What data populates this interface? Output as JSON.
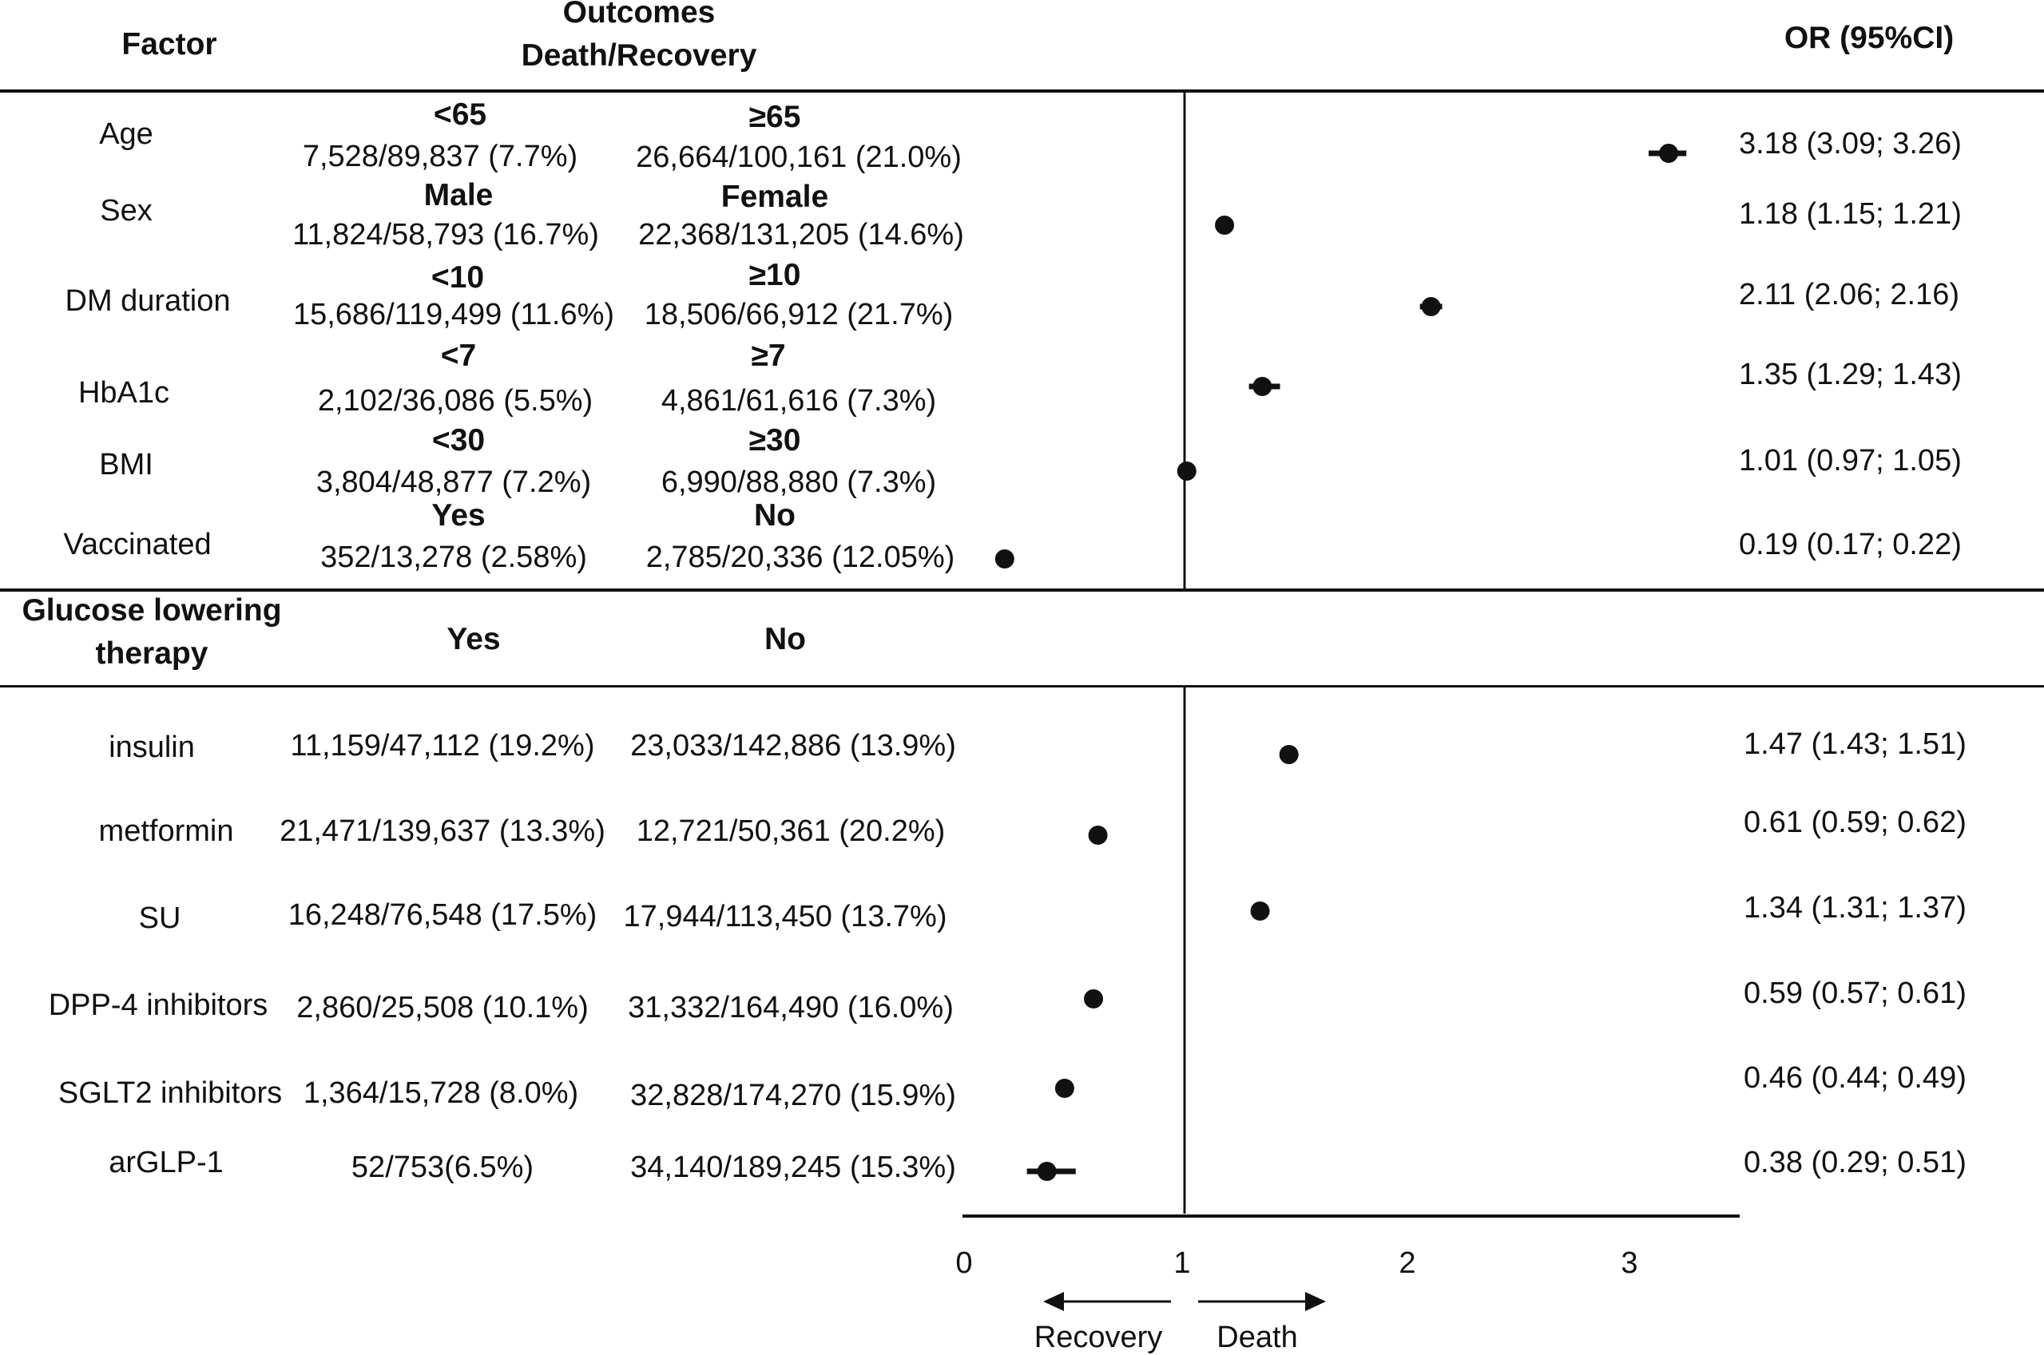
{
  "header": {
    "factor": "Factor",
    "outcomes_line1": "Outcomes",
    "outcomes_line2": "Death/Recovery",
    "or": "OR  (95%CI)"
  },
  "section2": {
    "title_line1": "Glucose lowering",
    "title_line2": "therapy",
    "col_yes": "Yes",
    "col_no": "No"
  },
  "rows": [
    {
      "factor": "Age",
      "g1": "<65",
      "v1": "7,528/89,837 (7.7%)",
      "g2": "≥65",
      "v2": "26,664/100,161 (21.0%)",
      "or_text": "3.18 (3.09; 3.26)"
    },
    {
      "factor": "Sex",
      "g1": "Male",
      "v1": "11,824/58,793 (16.7%)",
      "g2": "Female",
      "v2": "22,368/131,205 (14.6%)",
      "or_text": "1.18 (1.15; 1.21)"
    },
    {
      "factor": "DM duration",
      "g1": "<10",
      "v1": "15,686/119,499 (11.6%)",
      "g2": "≥10",
      "v2": "18,506/66,912 (21.7%)",
      "or_text": "2.11 (2.06; 2.16)"
    },
    {
      "factor": "HbA1c",
      "g1": "<7",
      "v1": "2,102/36,086 (5.5%)",
      "g2": "≥7",
      "v2": "4,861/61,616 (7.3%)",
      "or_text": "1.35 (1.29; 1.43)"
    },
    {
      "factor": "BMI",
      "g1": "<30",
      "v1": "3,804/48,877 (7.2%)",
      "g2": "≥30",
      "v2": "6,990/88,880 (7.3%)",
      "or_text": "1.01 (0.97; 1.05)"
    },
    {
      "factor": "Vaccinated",
      "g1": "Yes",
      "v1": "352/13,278 (2.58%)",
      "g2": "No",
      "v2": "2,785/20,336 (12.05%)",
      "or_text": "0.19 (0.17; 0.22)"
    }
  ],
  "therapy_rows": [
    {
      "factor": "insulin",
      "v1": "11,159/47,112 (19.2%)",
      "v2": "23,033/142,886 (13.9%)",
      "or_text": "1.47 (1.43; 1.51)"
    },
    {
      "factor": "metformin",
      "v1": "21,471/139,637 (13.3%)",
      "v2": "12,721/50,361 (20.2%)",
      "or_text": "0.61 (0.59; 0.62)"
    },
    {
      "factor": "SU",
      "v1": "16,248/76,548 (17.5%)",
      "v2": "17,944/113,450 (13.7%)",
      "or_text": "1.34 (1.31; 1.37)"
    },
    {
      "factor": "DPP-4 inhibitors",
      "v1": "2,860/25,508 (10.1%)",
      "v2": "31,332/164,490 (16.0%)",
      "or_text": "0.59 (0.57; 0.61)"
    },
    {
      "factor": "SGLT2 inhibitors",
      "v1": "1,364/15,728 (8.0%)",
      "v2": "32,828/174,270 (15.9%)",
      "or_text": "0.46 (0.44; 0.49)"
    },
    {
      "factor": "arGLP-1",
      "v1": "52/753(6.5%)",
      "v2": "34,140/189,245 (15.3%)",
      "or_text": "0.38 (0.29; 0.51)"
    }
  ],
  "axis": {
    "ticks": [
      "0",
      "1",
      "2",
      "3"
    ],
    "left_label": "Recovery",
    "right_label": "Death"
  },
  "chart_data": {
    "type": "forest",
    "title": "",
    "xlabel": "OR (95%CI)",
    "xlim": [
      0,
      3.5
    ],
    "reference_line": 1,
    "categories": [
      "Age",
      "Sex",
      "DM duration",
      "HbA1c",
      "BMI",
      "Vaccinated",
      "insulin",
      "metformin",
      "SU",
      "DPP-4 inhibitors",
      "SGLT2 inhibitors",
      "arGLP-1"
    ],
    "series": [
      {
        "name": "Odds ratio",
        "values": [
          3.18,
          1.18,
          2.11,
          1.35,
          1.01,
          0.19,
          1.47,
          0.61,
          1.34,
          0.59,
          0.46,
          0.38
        ]
      },
      {
        "name": "CI lower",
        "values": [
          3.09,
          1.15,
          2.06,
          1.29,
          0.97,
          0.17,
          1.43,
          0.59,
          1.31,
          0.57,
          0.44,
          0.29
        ]
      },
      {
        "name": "CI upper",
        "values": [
          3.26,
          1.21,
          2.16,
          1.43,
          1.05,
          0.22,
          1.51,
          0.62,
          1.37,
          0.61,
          0.49,
          0.51
        ]
      }
    ],
    "annotations": [
      "Recovery",
      "Death"
    ]
  }
}
